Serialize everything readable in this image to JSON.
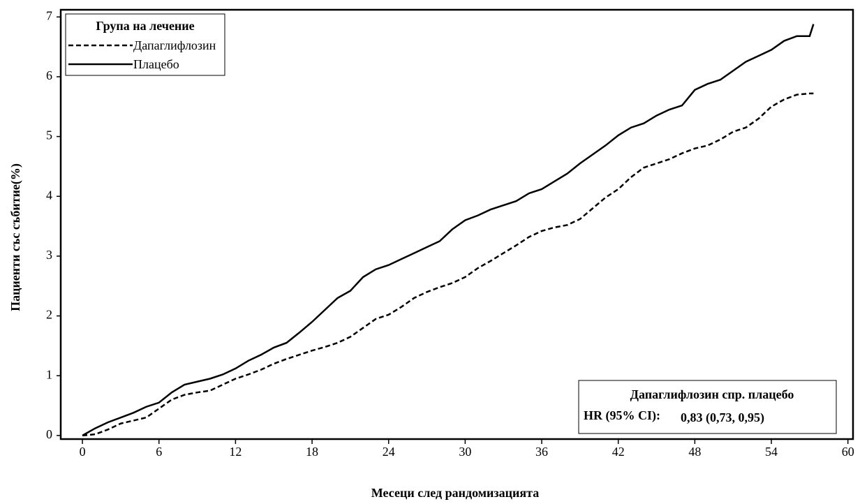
{
  "chart_data": {
    "type": "line",
    "step": true,
    "xlabel": "Месеци след рандомизацията",
    "ylabel": "Пациенти със събитие(%)",
    "legend_title": "Група на лечение",
    "legend": "upper left",
    "annotation": {
      "title": "Дапаглифлозин спр. плацебо",
      "label": "HR (95% CI):",
      "value": "0,83 (0,73, 0,95)"
    },
    "x": [
      0,
      1,
      2,
      3,
      4,
      5,
      6,
      7,
      8,
      9,
      10,
      11,
      12,
      13,
      14,
      15,
      16,
      17,
      18,
      19,
      20,
      21,
      22,
      23,
      24,
      25,
      26,
      27,
      28,
      29,
      30,
      31,
      32,
      33,
      34,
      35,
      36,
      37,
      38,
      39,
      40,
      41,
      42,
      43,
      44,
      45,
      46,
      47,
      48,
      49,
      50,
      51,
      52,
      53,
      54,
      55,
      56,
      57,
      57.3
    ],
    "series": [
      {
        "name": "Дапаглифлозин",
        "color": "#000000",
        "dash": true,
        "values": [
          0,
          0.02,
          0.1,
          0.2,
          0.25,
          0.3,
          0.45,
          0.6,
          0.68,
          0.72,
          0.75,
          0.85,
          0.95,
          1.02,
          1.1,
          1.2,
          1.28,
          1.35,
          1.42,
          1.48,
          1.55,
          1.65,
          1.8,
          1.95,
          2.02,
          2.15,
          2.3,
          2.4,
          2.48,
          2.55,
          2.65,
          2.8,
          2.92,
          3.05,
          3.18,
          3.32,
          3.42,
          3.48,
          3.52,
          3.62,
          3.8,
          3.98,
          4.12,
          4.32,
          4.48,
          4.55,
          4.62,
          4.72,
          4.8,
          4.85,
          4.95,
          5.08,
          5.15,
          5.3,
          5.5,
          5.62,
          5.7,
          5.72,
          5.72
        ]
      },
      {
        "name": "Плацебо",
        "color": "#000000",
        "dash": false,
        "values": [
          0,
          0.12,
          0.22,
          0.3,
          0.38,
          0.48,
          0.55,
          0.72,
          0.85,
          0.9,
          0.95,
          1.02,
          1.12,
          1.25,
          1.35,
          1.47,
          1.55,
          1.72,
          1.9,
          2.1,
          2.3,
          2.42,
          2.65,
          2.78,
          2.85,
          2.95,
          3.05,
          3.15,
          3.25,
          3.45,
          3.6,
          3.68,
          3.78,
          3.85,
          3.92,
          4.05,
          4.12,
          4.25,
          4.38,
          4.55,
          4.7,
          4.85,
          5.02,
          5.15,
          5.22,
          5.35,
          5.45,
          5.52,
          5.78,
          5.88,
          5.95,
          6.1,
          6.25,
          6.35,
          6.45,
          6.6,
          6.68,
          6.68,
          6.88
        ]
      }
    ],
    "xlim": [
      -1.7,
      60.4
    ],
    "ylim": [
      -0.06,
      7.12
    ],
    "xticks": [
      0,
      6,
      12,
      18,
      24,
      30,
      36,
      42,
      48,
      54,
      60
    ],
    "yticks": [
      0,
      1,
      2,
      3,
      4,
      5,
      6,
      7
    ],
    "grid": false
  }
}
